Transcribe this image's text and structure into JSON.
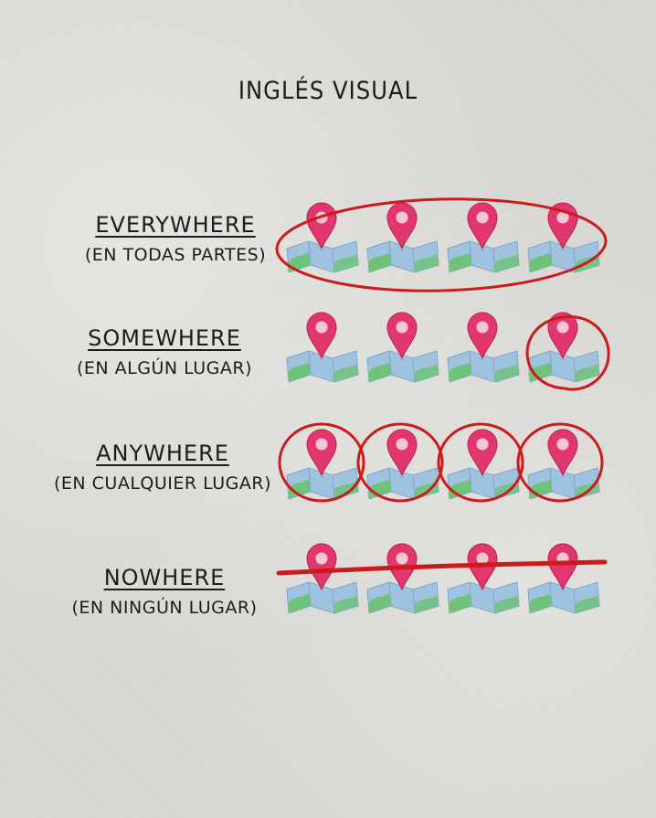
{
  "title": "INGLÉS VISUAL",
  "colors": {
    "marker": "#e2366e",
    "map_blue": "#9fc2df",
    "map_green": "#6ec27a",
    "ink_red": "#cc1b1b"
  },
  "rows": [
    {
      "word": "EVERYWHERE",
      "translation": "(EN TODAS PARTES)",
      "highlight": "all-circled"
    },
    {
      "word": "SOMEWHERE",
      "translation": "(EN ALGÚN LUGAR)",
      "highlight": "one-circled"
    },
    {
      "word": "ANYWHERE",
      "translation": "(EN CUALQUIER LUGAR)",
      "highlight": "each-circled"
    },
    {
      "word": "NOWHERE",
      "translation": "(EN NINGÚN LUGAR)",
      "highlight": "crossed-out"
    }
  ],
  "icon_name": "map-location-icon",
  "icons_per_row": 4
}
